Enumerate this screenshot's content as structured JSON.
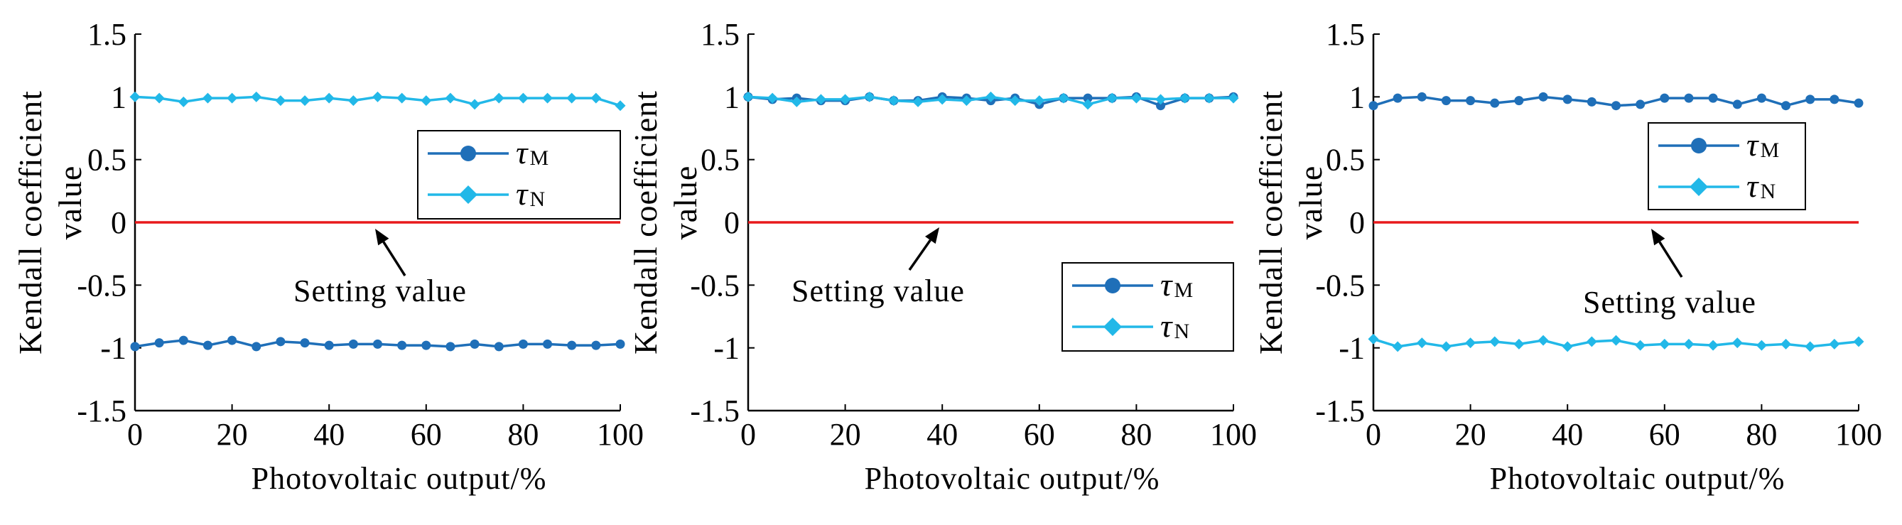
{
  "colors": {
    "tau_m": "#1f6fb8",
    "tau_n": "#22b8e8",
    "setting": "#e8191b",
    "axis": "#000000",
    "background": "#ffffff"
  },
  "chart_data": [
    {
      "type": "line",
      "title": "",
      "xlabel": "Photovoltaic output/%",
      "ylabel_line1": "Kendall coefficient",
      "ylabel_line2": "value",
      "xlim": [
        0,
        100
      ],
      "ylim": [
        -1.5,
        1.5
      ],
      "xticks": [
        "0",
        "20",
        "40",
        "60",
        "80",
        "100"
      ],
      "yticks": [
        "1.5",
        "1",
        "0.5",
        "0",
        "-0.5",
        "-1",
        "-1.5"
      ],
      "legend_position": "center-right",
      "annotation": "Setting value",
      "setting_value": 0,
      "x": [
        0,
        5,
        10,
        15,
        20,
        25,
        30,
        35,
        40,
        45,
        50,
        55,
        60,
        65,
        70,
        75,
        80,
        85,
        90,
        95,
        100
      ],
      "series": [
        {
          "name": "τ",
          "sub": "M",
          "key": "tau_m",
          "marker": "circle",
          "values": [
            -0.99,
            -0.96,
            -0.94,
            -0.98,
            -0.94,
            -0.99,
            -0.95,
            -0.96,
            -0.98,
            -0.97,
            -0.97,
            -0.98,
            -0.98,
            -0.99,
            -0.97,
            -0.99,
            -0.97,
            -0.97,
            -0.98,
            -0.98,
            -0.97
          ]
        },
        {
          "name": "τ",
          "sub": "N",
          "key": "tau_n",
          "marker": "diamond",
          "values": [
            1.0,
            0.99,
            0.96,
            0.99,
            0.99,
            1.0,
            0.97,
            0.97,
            0.99,
            0.97,
            1.0,
            0.99,
            0.97,
            0.99,
            0.94,
            0.99,
            0.99,
            0.99,
            0.99,
            0.99,
            0.93
          ]
        }
      ]
    },
    {
      "type": "line",
      "title": "",
      "xlabel": "Photovoltaic output/%",
      "ylabel_line1": "Kendall coefficient",
      "ylabel_line2": "value",
      "xlim": [
        0,
        100
      ],
      "ylim": [
        -1.5,
        1.5
      ],
      "xticks": [
        "0",
        "20",
        "40",
        "60",
        "80",
        "100"
      ],
      "yticks": [
        "1.5",
        "1",
        "0.5",
        "0",
        "-0.5",
        "-1",
        "-1.5"
      ],
      "legend_position": "right",
      "annotation": "Setting value",
      "setting_value": 0,
      "x": [
        0,
        5,
        10,
        15,
        20,
        25,
        30,
        35,
        40,
        45,
        50,
        55,
        60,
        65,
        70,
        75,
        80,
        85,
        90,
        95,
        100
      ],
      "series": [
        {
          "name": "τ",
          "sub": "M",
          "key": "tau_m",
          "marker": "circle",
          "values": [
            1.0,
            0.98,
            0.99,
            0.97,
            0.97,
            1.0,
            0.97,
            0.97,
            1.0,
            0.99,
            0.97,
            0.99,
            0.94,
            0.99,
            0.99,
            0.99,
            1.0,
            0.93,
            0.99,
            0.99,
            1.0
          ]
        },
        {
          "name": "τ",
          "sub": "N",
          "key": "tau_n",
          "marker": "diamond",
          "values": [
            1.0,
            0.99,
            0.96,
            0.98,
            0.98,
            1.0,
            0.97,
            0.96,
            0.98,
            0.97,
            1.0,
            0.97,
            0.97,
            0.99,
            0.94,
            0.99,
            0.99,
            0.98,
            0.99,
            0.99,
            0.99
          ]
        }
      ]
    },
    {
      "type": "line",
      "title": "",
      "xlabel": "Photovoltaic output/%",
      "ylabel_line1": "Kendall coefficient",
      "ylabel_line2": "value",
      "xlim": [
        0,
        100
      ],
      "ylim": [
        -1.5,
        1.5
      ],
      "xticks": [
        "0",
        "20",
        "40",
        "60",
        "80",
        "100"
      ],
      "yticks": [
        "1.5",
        "1",
        "0.5",
        "0",
        "-0.5",
        "-1",
        "-1.5"
      ],
      "legend_position": "center-right",
      "annotation": "Setting value",
      "setting_value": 0,
      "x": [
        0,
        5,
        10,
        15,
        20,
        25,
        30,
        35,
        40,
        45,
        50,
        55,
        60,
        65,
        70,
        75,
        80,
        85,
        90,
        95,
        100
      ],
      "series": [
        {
          "name": "τ",
          "sub": "M",
          "key": "tau_m",
          "marker": "circle",
          "values": [
            0.93,
            0.99,
            1.0,
            0.97,
            0.97,
            0.95,
            0.97,
            1.0,
            0.98,
            0.96,
            0.93,
            0.94,
            0.99,
            0.99,
            0.99,
            0.94,
            0.99,
            0.93,
            0.98,
            0.98,
            0.95
          ]
        },
        {
          "name": "τ",
          "sub": "N",
          "key": "tau_n",
          "marker": "diamond",
          "values": [
            -0.93,
            -0.99,
            -0.96,
            -0.99,
            -0.96,
            -0.95,
            -0.97,
            -0.94,
            -0.99,
            -0.95,
            -0.94,
            -0.98,
            -0.97,
            -0.97,
            -0.98,
            -0.96,
            -0.98,
            -0.97,
            -0.99,
            -0.97,
            -0.95
          ]
        }
      ]
    }
  ]
}
